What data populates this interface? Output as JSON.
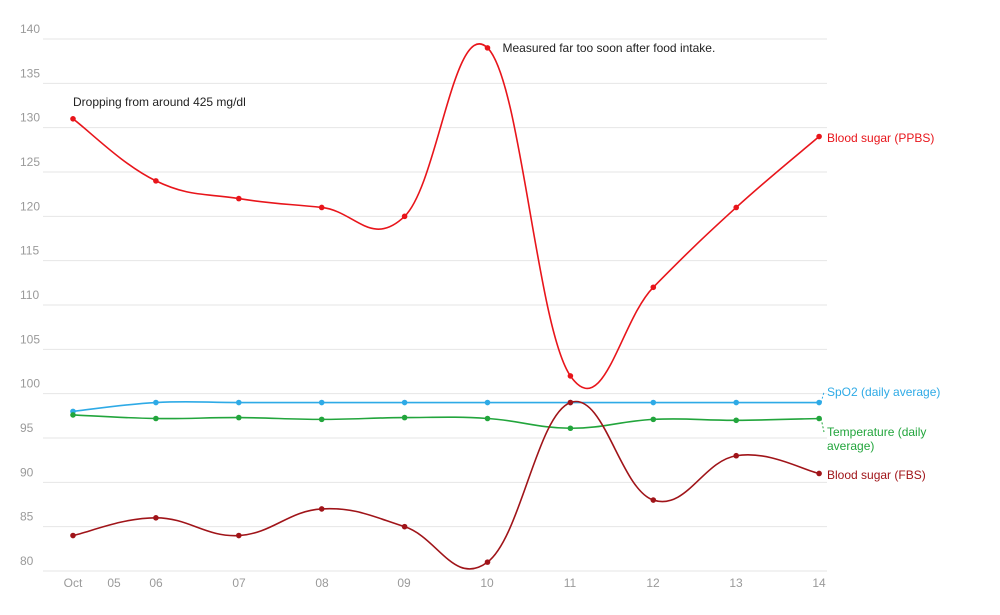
{
  "chart_data": {
    "type": "line",
    "x_ticks": [
      "Oct",
      "05",
      "06",
      "07",
      "08",
      "09",
      "10",
      "11",
      "12",
      "13",
      "14"
    ],
    "categories": [
      "05",
      "06",
      "07",
      "08",
      "09",
      "10",
      "11",
      "12",
      "13",
      "14"
    ],
    "ylim": [
      80,
      140
    ],
    "yticks": [
      80,
      85,
      90,
      95,
      100,
      105,
      110,
      115,
      120,
      125,
      130,
      135,
      140
    ],
    "grid": true,
    "series": [
      {
        "name": "Blood sugar (PPBS)",
        "color": "#e8151b",
        "values": [
          131,
          124,
          122,
          121,
          120,
          139,
          102,
          112,
          121,
          129
        ]
      },
      {
        "name": "SpO2 (daily average)",
        "color": "#2eaae6",
        "values": [
          98,
          99,
          99,
          99,
          99,
          99,
          99,
          99,
          99,
          99
        ]
      },
      {
        "name": "Temperature (daily average)",
        "color": "#22a53c",
        "values": [
          97.6,
          97.2,
          97.3,
          97.1,
          97.3,
          97.2,
          96.1,
          97.1,
          97.0,
          97.2
        ]
      },
      {
        "name": "Blood sugar (FBS)",
        "color": "#a01419",
        "values": [
          84,
          86,
          84,
          87,
          85,
          81,
          99,
          88,
          93,
          91
        ]
      }
    ],
    "annotations": [
      {
        "text": "Dropping from around 425 mg/dl",
        "series": 0,
        "index": 0
      },
      {
        "text": "Measured far too soon after food intake.",
        "series": 0,
        "index": 5
      }
    ]
  }
}
